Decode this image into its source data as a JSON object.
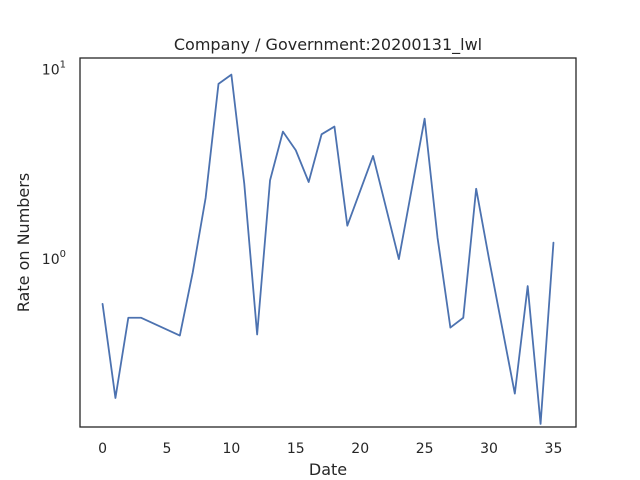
{
  "chart_data": {
    "type": "line",
    "title": "Company / Government:20200131_lwl",
    "xlabel": "Date",
    "ylabel": "Rate on Numbers",
    "yscale": "log",
    "xlim": [
      -1.75,
      36.75
    ],
    "ylim": [
      0.13,
      11.5
    ],
    "x_ticks": [
      0,
      5,
      10,
      15,
      20,
      25,
      30,
      35
    ],
    "y_ticks": [
      {
        "value": 1,
        "base": "10",
        "exponent": "0"
      },
      {
        "value": 10,
        "base": "10",
        "exponent": "1"
      }
    ],
    "grid": false,
    "legend": "none",
    "series": [
      {
        "color": "#4c72b0",
        "x": [
          0,
          1,
          2,
          3,
          6,
          7,
          8,
          9,
          10,
          11,
          12,
          13,
          14,
          15,
          16,
          17,
          18,
          19,
          21,
          23,
          25,
          26,
          27,
          28,
          29,
          30,
          32,
          33,
          34,
          35
        ],
        "y": [
          0.58,
          0.185,
          0.49,
          0.49,
          0.395,
          0.85,
          2.1,
          8.4,
          9.4,
          2.5,
          0.4,
          2.6,
          4.7,
          3.75,
          2.55,
          4.55,
          5.0,
          1.5,
          3.5,
          1.0,
          5.5,
          1.3,
          0.435,
          0.49,
          2.35,
          1.0,
          0.195,
          0.72,
          0.135,
          1.22
        ]
      }
    ]
  }
}
